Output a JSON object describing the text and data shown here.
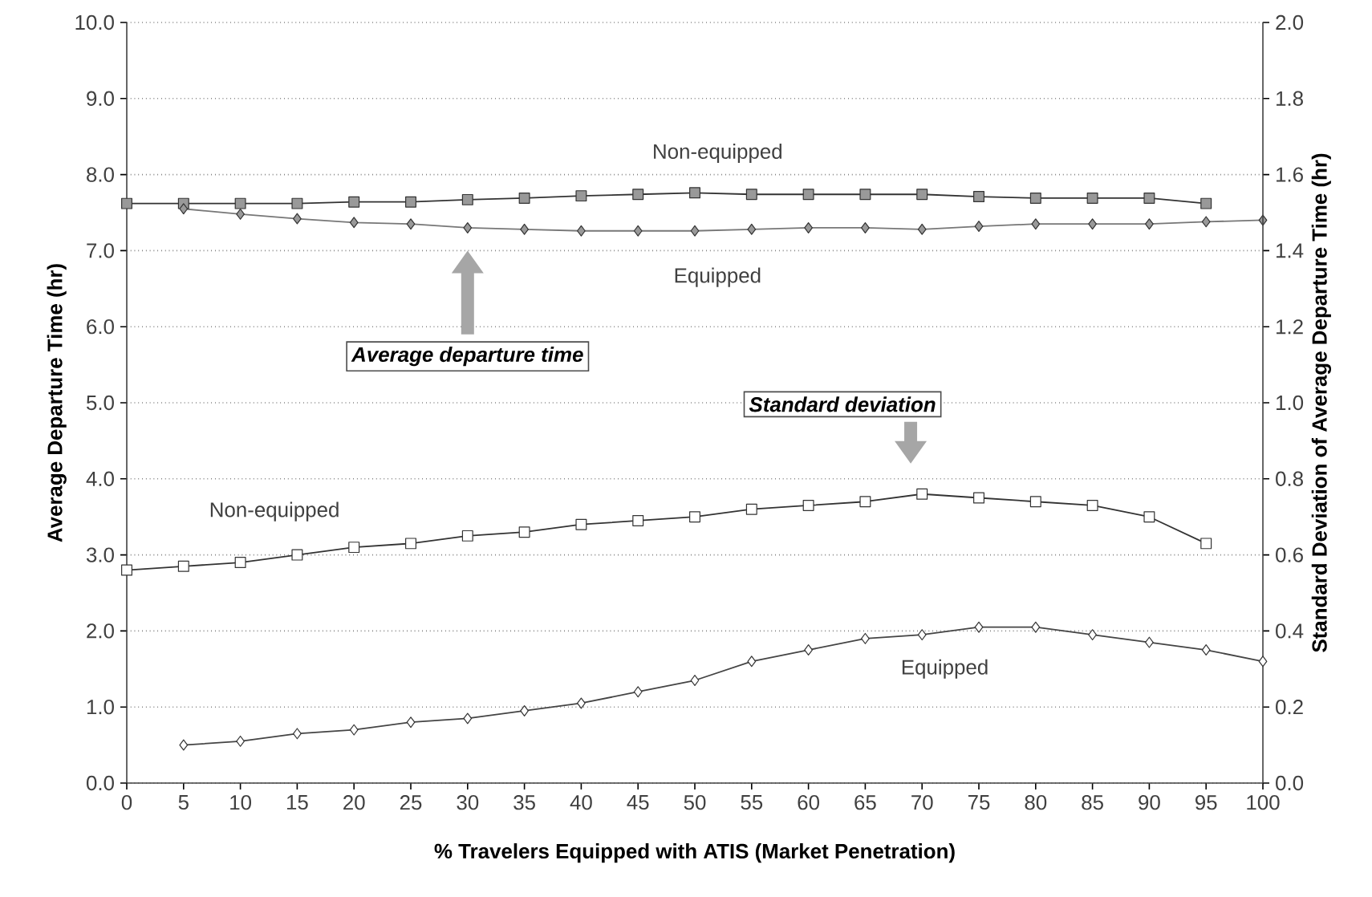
{
  "chart_data": {
    "type": "line",
    "xlabel": "% Travelers Equipped with ATIS (Market Penetration)",
    "ylabel": "Average Departure Time (hr)",
    "y2label": "Standard Deviation of Average Departure Time (hr)",
    "x": [
      0,
      5,
      10,
      15,
      20,
      25,
      30,
      35,
      40,
      45,
      50,
      55,
      60,
      65,
      70,
      75,
      80,
      85,
      90,
      95,
      100
    ],
    "series": [
      {
        "name": "Non-equipped",
        "color": "#333333",
        "marker": "square",
        "values": [
          7.62,
          7.62,
          7.62,
          7.62,
          7.64,
          7.64,
          7.67,
          7.69,
          7.72,
          7.74,
          7.76,
          7.74,
          7.74,
          7.74,
          7.74,
          7.71,
          7.69,
          7.69,
          7.69,
          7.62,
          null
        ]
      },
      {
        "name": "Equipped",
        "color": "#777777",
        "marker": "diamond",
        "values": [
          null,
          7.55,
          7.48,
          7.42,
          7.37,
          7.35,
          7.3,
          7.28,
          7.26,
          7.26,
          7.26,
          7.28,
          7.3,
          7.3,
          7.28,
          7.32,
          7.35,
          7.35,
          7.35,
          7.38,
          7.4
        ]
      },
      {
        "name": "Non-equipped",
        "color": "#333333",
        "marker": "square",
        "axis": "y2",
        "values": [
          0.56,
          0.57,
          0.58,
          0.6,
          0.62,
          0.63,
          0.65,
          0.66,
          0.68,
          0.69,
          0.7,
          0.72,
          0.73,
          0.74,
          0.76,
          0.75,
          0.74,
          0.73,
          0.7,
          0.63,
          null
        ]
      },
      {
        "name": "Equipped",
        "color": "#444444",
        "marker": "diamond",
        "axis": "y2",
        "values": [
          null,
          0.1,
          0.11,
          0.13,
          0.14,
          0.16,
          0.17,
          0.19,
          0.21,
          0.24,
          0.27,
          0.32,
          0.35,
          0.38,
          0.39,
          0.41,
          0.41,
          0.39,
          0.37,
          0.35,
          0.32
        ]
      }
    ],
    "xlim": [
      0,
      100
    ],
    "xticks": [
      0,
      5,
      10,
      15,
      20,
      25,
      30,
      35,
      40,
      45,
      50,
      55,
      60,
      65,
      70,
      75,
      80,
      85,
      90,
      95,
      100
    ],
    "ylim": [
      0,
      10
    ],
    "yticks": [
      {
        "value": 0,
        "label": "0.0"
      },
      {
        "value": 1,
        "label": "1.0"
      },
      {
        "value": 2,
        "label": "2.0"
      },
      {
        "value": 3,
        "label": "3.0"
      },
      {
        "value": 4,
        "label": "4.0"
      },
      {
        "value": 5,
        "label": "5.0"
      },
      {
        "value": 6,
        "label": "6.0"
      },
      {
        "value": 7,
        "label": "7.0"
      },
      {
        "value": 8,
        "label": "8.0"
      },
      {
        "value": 9,
        "label": "9.0"
      },
      {
        "value": 10,
        "label": "10.0"
      }
    ],
    "y2lim": [
      0,
      2
    ],
    "y2ticks": [
      {
        "value": 0,
        "label": "0.0"
      },
      {
        "value": 0.2,
        "label": "0.2"
      },
      {
        "value": 0.4,
        "label": "0.4"
      },
      {
        "value": 0.6,
        "label": "0.6"
      },
      {
        "value": 0.8,
        "label": "0.8"
      },
      {
        "value": 1.0,
        "label": "1.0"
      },
      {
        "value": 1.2,
        "label": "1.2"
      },
      {
        "value": 1.4,
        "label": "1.4"
      },
      {
        "value": 1.6,
        "label": "1.6"
      },
      {
        "value": 1.8,
        "label": "1.8"
      },
      {
        "value": 2.0,
        "label": "2.0"
      }
    ],
    "grid": "y",
    "annotations": [
      "Average departure time",
      "Standard deviation"
    ]
  }
}
